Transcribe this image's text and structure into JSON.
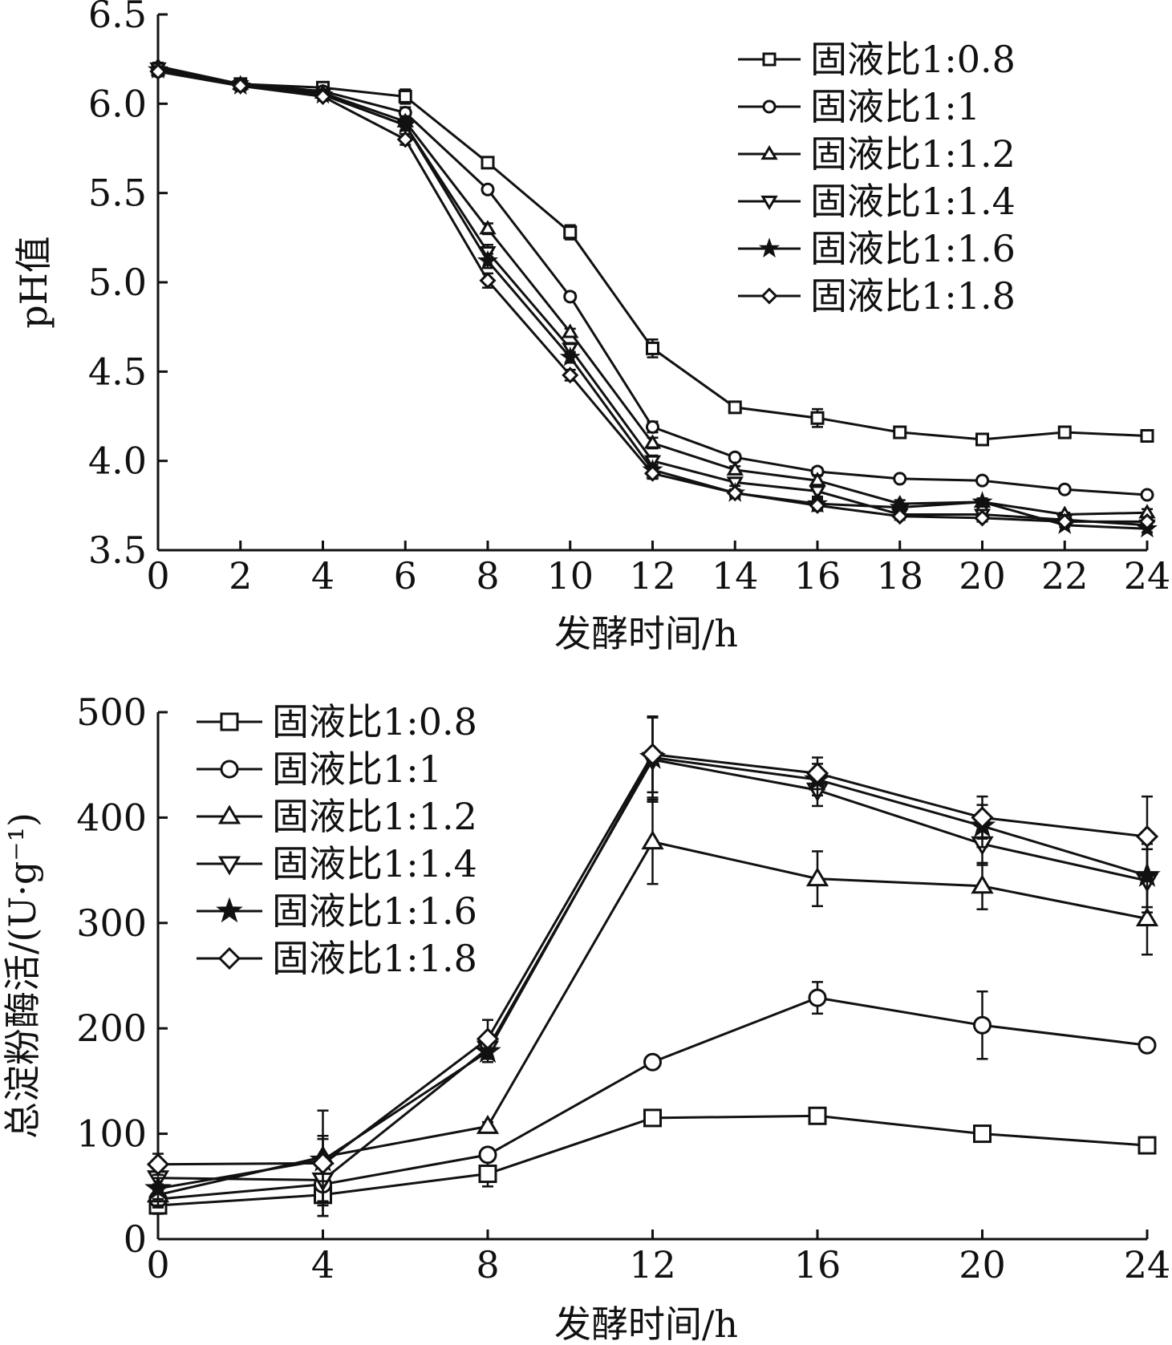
{
  "chart_data": [
    {
      "type": "line",
      "xlabel": "发酵时间/h",
      "ylabel": "pH值",
      "xlim": [
        0,
        24
      ],
      "ylim": [
        3.5,
        6.5
      ],
      "xticks": [
        "0",
        "2",
        "4",
        "6",
        "8",
        "10",
        "12",
        "14",
        "16",
        "18",
        "20",
        "22",
        "24"
      ],
      "yticks": [
        "3.5",
        "4.0",
        "4.5",
        "5.0",
        "5.5",
        "6.0",
        "6.5"
      ],
      "grid": false,
      "legend_position": "top-right",
      "x": [
        0,
        2,
        4,
        6,
        8,
        10,
        12,
        14,
        16,
        18,
        20,
        22,
        24
      ],
      "series": [
        {
          "name": "固液比1:0.8",
          "marker": "square",
          "values": [
            6.19,
            6.11,
            6.09,
            6.04,
            5.67,
            5.28,
            4.63,
            4.3,
            4.24,
            4.16,
            4.12,
            4.16,
            4.14
          ],
          "errors": [
            0.02,
            0.01,
            0.02,
            0.04,
            0.02,
            0.04,
            0.05,
            0.03,
            0.05,
            0.02,
            0.03,
            0.02,
            0.02
          ]
        },
        {
          "name": "固液比1:1",
          "marker": "circle",
          "values": [
            6.18,
            6.11,
            6.07,
            5.95,
            5.52,
            4.92,
            4.19,
            4.02,
            3.94,
            3.9,
            3.89,
            3.84,
            3.81
          ],
          "errors": [
            0.02,
            0.01,
            0.01,
            0.03,
            0.02,
            0.02,
            0.03,
            0.02,
            0.02,
            0.01,
            0.01,
            0.01,
            0.01
          ]
        },
        {
          "name": "固液比1:1.2",
          "marker": "triangle-up",
          "values": [
            6.21,
            6.11,
            6.06,
            5.9,
            5.3,
            4.72,
            4.1,
            3.95,
            3.89,
            3.76,
            3.77,
            3.7,
            3.71
          ],
          "errors": [
            0.02,
            0.01,
            0.02,
            0.03,
            0.03,
            0.02,
            0.03,
            0.02,
            0.03,
            0.02,
            0.02,
            0.01,
            0.02
          ]
        },
        {
          "name": "固液比1:1.4",
          "marker": "triangle-down",
          "values": [
            6.2,
            6.1,
            6.05,
            5.88,
            5.17,
            4.63,
            4.0,
            3.88,
            3.83,
            3.7,
            3.7,
            3.67,
            3.64
          ],
          "errors": [
            0.02,
            0.01,
            0.02,
            0.03,
            0.04,
            0.03,
            0.03,
            0.02,
            0.03,
            0.02,
            0.02,
            0.01,
            0.02
          ]
        },
        {
          "name": "固液比1:1.6",
          "marker": "star",
          "values": [
            6.19,
            6.1,
            6.05,
            5.88,
            5.12,
            4.58,
            3.95,
            3.82,
            3.76,
            3.74,
            3.77,
            3.64,
            3.62
          ],
          "errors": [
            0.02,
            0.01,
            0.02,
            0.03,
            0.04,
            0.03,
            0.03,
            0.02,
            0.03,
            0.02,
            0.02,
            0.01,
            0.02
          ]
        },
        {
          "name": "固液比1:1.8",
          "marker": "diamond",
          "values": [
            6.18,
            6.1,
            6.04,
            5.8,
            5.01,
            4.48,
            3.93,
            3.82,
            3.75,
            3.69,
            3.68,
            3.66,
            3.66
          ],
          "errors": [
            0.02,
            0.01,
            0.02,
            0.03,
            0.04,
            0.03,
            0.03,
            0.02,
            0.03,
            0.02,
            0.02,
            0.01,
            0.02
          ]
        }
      ]
    },
    {
      "type": "line",
      "xlabel": "发酵时间/h",
      "ylabel": "总淀粉酶活/(U·g⁻¹)",
      "xlim": [
        0,
        24
      ],
      "ylim": [
        0,
        500
      ],
      "xticks": [
        "0",
        "4",
        "8",
        "12",
        "16",
        "20",
        "24"
      ],
      "yticks": [
        "0",
        "100",
        "200",
        "300",
        "400",
        "500"
      ],
      "grid": false,
      "legend_position": "top-left",
      "x": [
        0,
        4,
        8,
        12,
        16,
        20,
        24
      ],
      "series": [
        {
          "name": "固液比1:0.8",
          "marker": "square",
          "values": [
            32,
            42,
            62,
            115,
            117,
            100,
            89
          ],
          "errors": [
            8,
            20,
            12,
            4,
            4,
            4,
            6
          ]
        },
        {
          "name": "固液比1:1",
          "marker": "circle",
          "values": [
            38,
            52,
            80,
            168,
            229,
            203,
            184
          ],
          "errors": [
            8,
            20,
            6,
            4,
            15,
            32,
            4
          ]
        },
        {
          "name": "固液比1:1.2",
          "marker": "triangle-up",
          "values": [
            42,
            78,
            107,
            377,
            342,
            335,
            304
          ],
          "errors": [
            10,
            20,
            4,
            40,
            26,
            22,
            34
          ]
        },
        {
          "name": "固液比1:1.4",
          "marker": "triangle-down",
          "values": [
            58,
            56,
            181,
            455,
            426,
            375,
            340
          ],
          "errors": [
            10,
            20,
            10,
            40,
            15,
            20,
            30
          ]
        },
        {
          "name": "固液比1:1.6",
          "marker": "star",
          "values": [
            48,
            75,
            178,
            457,
            436,
            392,
            345
          ],
          "errors": [
            10,
            20,
            10,
            38,
            15,
            20,
            30
          ]
        },
        {
          "name": "固液比1:1.8",
          "marker": "diamond",
          "values": [
            71,
            72,
            190,
            460,
            442,
            400,
            382
          ],
          "errors": [
            10,
            50,
            18,
            36,
            15,
            20,
            38
          ]
        }
      ]
    }
  ]
}
